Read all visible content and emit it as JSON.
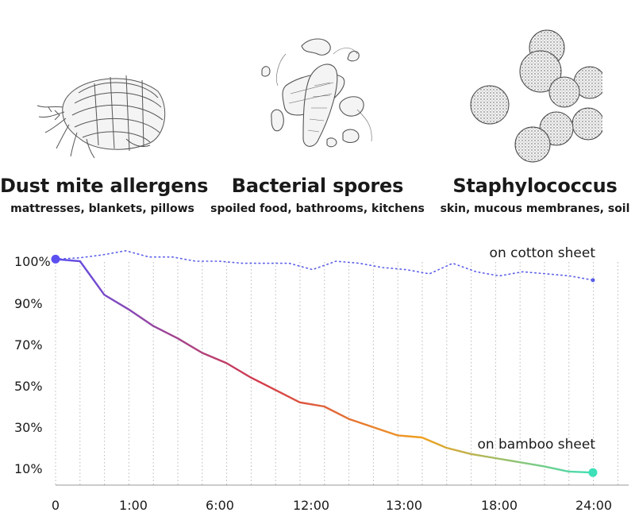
{
  "microbes": [
    {
      "title": "Dust mite allergens",
      "subtitle": "mattresses, blankets, pillows",
      "icon": "dust-mite-illustration"
    },
    {
      "title": "Bacterial spores",
      "subtitle": "spoiled food, bathrooms, kitchens",
      "icon": "bacteria-illustration"
    },
    {
      "title": "Staphylococcus",
      "subtitle": "skin, mucous membranes, soil",
      "icon": "cocci-illustration"
    }
  ],
  "colors": {
    "cotton": "#5b5fe8",
    "bamboo_start": "#5b4ff0",
    "bamboo_mid": "#d43a4a",
    "bamboo_late": "#f0a020",
    "bamboo_end": "#3ee0b8",
    "grid": "#b8b8b8"
  },
  "chart_data": {
    "type": "line",
    "title": "",
    "xlabel": "",
    "ylabel": "",
    "x_tick_labels": [
      "0",
      "1:00",
      "6:00",
      "12:00",
      "13:00",
      "18:00",
      "24:00"
    ],
    "y_tick_labels": [
      "100%",
      "90%",
      "70%",
      "50%",
      "30%",
      "10%"
    ],
    "grid": "vertical dotted",
    "series": [
      {
        "name": "on cotton sheet",
        "style": "dotted",
        "values": [
          100.5,
          100.8,
          101.5,
          102.5,
          101,
          101,
          100,
          100,
          99.5,
          99.5,
          99.5,
          98,
          100,
          99.5,
          98.5,
          98,
          97,
          99.5,
          97.5,
          96.5,
          97.5,
          97,
          96.5,
          95.5
        ]
      },
      {
        "name": "on bamboo sheet",
        "style": "solid-gradient",
        "values": [
          100.5,
          100,
          92,
          87,
          79,
          73,
          66,
          61,
          54,
          48,
          42,
          40,
          34,
          30,
          26,
          25,
          20,
          17,
          15,
          13,
          11,
          8.5,
          8
        ]
      }
    ]
  }
}
